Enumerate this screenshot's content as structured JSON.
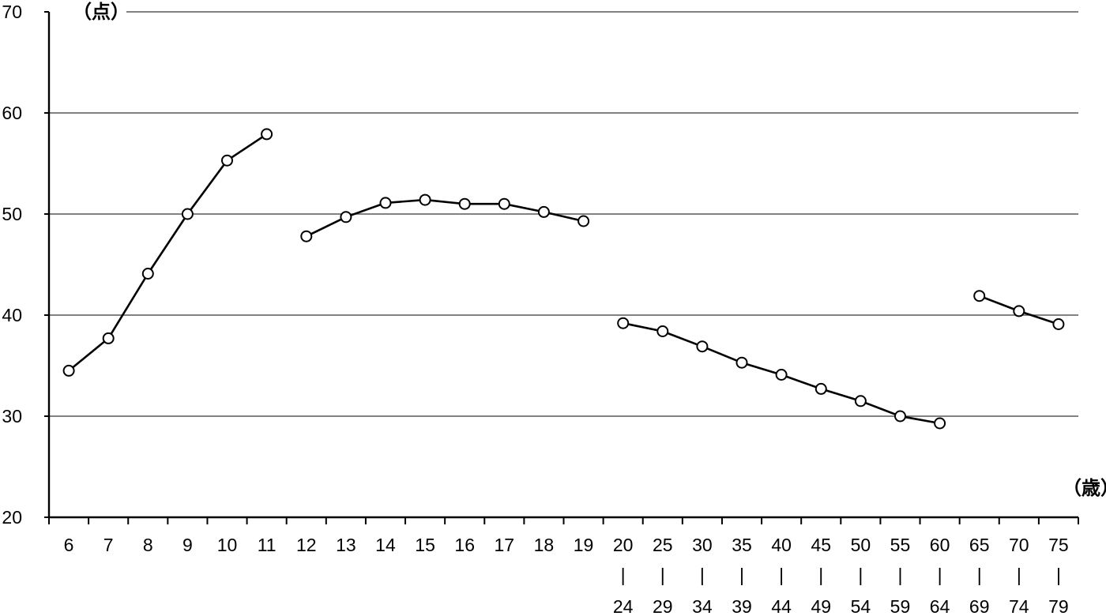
{
  "chart_data": {
    "type": "line",
    "yunit": "（点）",
    "xunit": "（歳）",
    "ylim": [
      20,
      70
    ],
    "yticks": [
      20,
      30,
      40,
      50,
      60,
      70
    ],
    "grid": true,
    "categories": [
      {
        "top": "6",
        "bottom": ""
      },
      {
        "top": "7",
        "bottom": ""
      },
      {
        "top": "8",
        "bottom": ""
      },
      {
        "top": "9",
        "bottom": ""
      },
      {
        "top": "10",
        "bottom": ""
      },
      {
        "top": "11",
        "bottom": ""
      },
      {
        "top": "12",
        "bottom": ""
      },
      {
        "top": "13",
        "bottom": ""
      },
      {
        "top": "14",
        "bottom": ""
      },
      {
        "top": "15",
        "bottom": ""
      },
      {
        "top": "16",
        "bottom": ""
      },
      {
        "top": "17",
        "bottom": ""
      },
      {
        "top": "18",
        "bottom": ""
      },
      {
        "top": "19",
        "bottom": ""
      },
      {
        "top": "20",
        "bottom": "24"
      },
      {
        "top": "25",
        "bottom": "29"
      },
      {
        "top": "30",
        "bottom": "34"
      },
      {
        "top": "35",
        "bottom": "39"
      },
      {
        "top": "40",
        "bottom": "44"
      },
      {
        "top": "45",
        "bottom": "49"
      },
      {
        "top": "50",
        "bottom": "54"
      },
      {
        "top": "55",
        "bottom": "59"
      },
      {
        "top": "60",
        "bottom": "64"
      },
      {
        "top": "65",
        "bottom": "69"
      },
      {
        "top": "70",
        "bottom": "74"
      },
      {
        "top": "75",
        "bottom": "79"
      }
    ],
    "range_separator": "|",
    "segments": [
      {
        "start": 0,
        "values": [
          34.5,
          37.7,
          44.1,
          50.0,
          55.3,
          57.9
        ]
      },
      {
        "start": 6,
        "values": [
          47.8,
          49.7,
          51.1,
          51.4,
          51.0,
          51.0,
          50.2,
          49.3
        ]
      },
      {
        "start": 14,
        "values": [
          39.2,
          38.4,
          36.9,
          35.3,
          34.1,
          32.7,
          31.5,
          30.0,
          29.3
        ]
      },
      {
        "start": 23,
        "values": [
          41.9,
          40.4,
          39.1
        ]
      }
    ]
  }
}
